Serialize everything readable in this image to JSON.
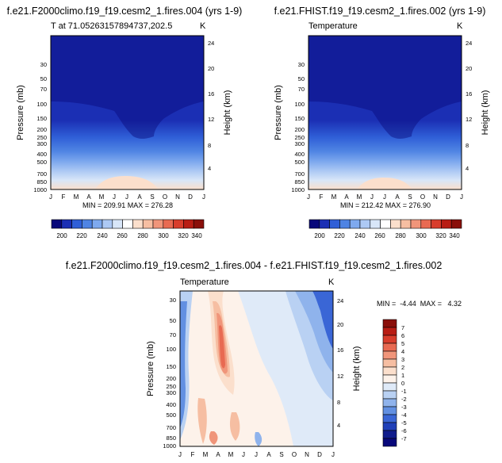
{
  "chart_data": [
    {
      "type": "heatmap",
      "title": "f.e21.F2000climo.f19_f19.cesm2_1.fires.004 (yrs 1-9)",
      "subtitle": "T at 71.05263157894737,202.5",
      "unit": "K",
      "xlabel": "",
      "ylabel": "Pressure (mb)",
      "ylabel_right": "Height (km)",
      "x_ticks": [
        "J",
        "F",
        "M",
        "A",
        "M",
        "J",
        "J",
        "A",
        "S",
        "O",
        "N",
        "D",
        "J"
      ],
      "y_ticks": [
        30,
        50,
        70,
        100,
        150,
        200,
        250,
        300,
        400,
        500,
        700,
        850,
        1000
      ],
      "y_ticks_right": [
        24,
        20,
        16,
        12,
        8,
        4
      ],
      "ylim": [
        1000,
        20
      ],
      "stats_text": "MIN = 209.91   MAX = 276.28",
      "colorbar": {
        "labels": [
          200,
          220,
          240,
          260,
          280,
          300,
          320,
          340
        ],
        "colors": [
          "#08087a",
          "#1b2fb4",
          "#2f5fd7",
          "#4f84e3",
          "#7ea9ee",
          "#adc9f4",
          "#d8e6f8",
          "#ffffff",
          "#fbdfcc",
          "#f6bea2",
          "#f0957a",
          "#e86a52",
          "#d83d2c",
          "#b81d14",
          "#8a0f0a"
        ]
      }
    },
    {
      "type": "heatmap",
      "title": "f.e21.FHIST.f19_f19.cesm2_1.fires.002 (yrs 1-9)",
      "subtitle": "Temperature",
      "unit": "K",
      "xlabel": "",
      "ylabel": "Pressure (mb)",
      "ylabel_right": "Height (km)",
      "x_ticks": [
        "J",
        "F",
        "M",
        "A",
        "M",
        "J",
        "J",
        "A",
        "S",
        "O",
        "N",
        "D",
        "J"
      ],
      "y_ticks": [
        30,
        50,
        70,
        100,
        150,
        200,
        250,
        300,
        400,
        500,
        700,
        850,
        1000
      ],
      "y_ticks_right": [
        24,
        20,
        16,
        12,
        8,
        4
      ],
      "ylim": [
        1000,
        20
      ],
      "stats_text": "MIN = 212.42   MAX = 276.90",
      "colorbar": {
        "labels": [
          200,
          220,
          240,
          260,
          280,
          300,
          320,
          340
        ],
        "colors": [
          "#08087a",
          "#1b2fb4",
          "#2f5fd7",
          "#4f84e3",
          "#7ea9ee",
          "#adc9f4",
          "#d8e6f8",
          "#ffffff",
          "#fbdfcc",
          "#f6bea2",
          "#f0957a",
          "#e86a52",
          "#d83d2c",
          "#b81d14",
          "#8a0f0a"
        ]
      }
    },
    {
      "type": "heatmap",
      "title": "f.e21.F2000climo.f19_f19.cesm2_1.fires.004 - f.e21.FHIST.f19_f19.cesm2_1.fires.002",
      "subtitle": "Temperature",
      "unit": "K",
      "xlabel": "",
      "ylabel": "Pressure (mb)",
      "ylabel_right": "Height (km)",
      "x_ticks": [
        "J",
        "F",
        "M",
        "A",
        "M",
        "J",
        "J",
        "A",
        "S",
        "O",
        "N",
        "D",
        "J"
      ],
      "y_ticks": [
        30,
        50,
        70,
        100,
        150,
        200,
        250,
        300,
        400,
        500,
        700,
        850,
        1000
      ],
      "y_ticks_right": [
        24,
        20,
        16,
        12,
        8,
        4
      ],
      "ylim": [
        1000,
        20
      ],
      "stats_text": "MIN =  -4.44  MAX =   4.32",
      "colorbar": {
        "labels": [
          7,
          6,
          5,
          4,
          3,
          2,
          1,
          0,
          -1,
          -2,
          -3,
          -4,
          -5,
          -6,
          -7
        ],
        "colors": [
          "#8a0f0a",
          "#b81d14",
          "#d83d2c",
          "#e86a52",
          "#f0957a",
          "#f6bea2",
          "#fbdfcc",
          "#fdf2ea",
          "#dfeaf8",
          "#b9d1f3",
          "#8fb3ec",
          "#6290e2",
          "#3a66d6",
          "#1f3fb8",
          "#101c8c",
          "#08087a"
        ]
      }
    }
  ]
}
